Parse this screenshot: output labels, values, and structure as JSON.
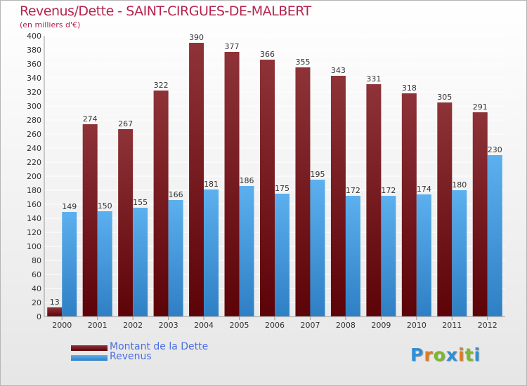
{
  "title": "Revenus/Dette - SAINT-CIRGUES-DE-MALBERT",
  "subtitle": "(en milliers d'€)",
  "colors": {
    "dette_top": "#8e3338",
    "dette_bottom": "#5c0308",
    "revenus_top": "#5cb0ee",
    "revenus_bottom": "#2e7fc4",
    "grid": "#ffffff",
    "axis_text": "#333333"
  },
  "chart_data": {
    "type": "bar",
    "title": "Revenus/Dette - SAINT-CIRGUES-DE-MALBERT",
    "subtitle": "(en milliers d'€)",
    "categories": [
      "2000",
      "2001",
      "2002",
      "2003",
      "2004",
      "2005",
      "2006",
      "2007",
      "2008",
      "2009",
      "2010",
      "2011",
      "2012"
    ],
    "series": [
      {
        "name": "Montant de la Dette",
        "values": [
          13,
          274,
          267,
          322,
          390,
          377,
          366,
          355,
          343,
          331,
          318,
          305,
          291
        ]
      },
      {
        "name": "Revenus",
        "values": [
          149,
          150,
          155,
          166,
          181,
          186,
          175,
          195,
          172,
          172,
          174,
          180,
          230
        ]
      }
    ],
    "ylim": [
      0,
      400
    ],
    "ytick_step": 20,
    "grid": true,
    "legend_position": "bottom-left"
  },
  "legend": [
    {
      "label": "Montant de la Dette"
    },
    {
      "label": "Revenus"
    }
  ],
  "logo": {
    "letters": [
      "P",
      "r",
      "o",
      "x",
      "i",
      "t",
      "i"
    ],
    "colors": [
      "#2d8fd6",
      "#e07b1f",
      "#7ab929",
      "#2d8fd6",
      "#e07b1f",
      "#7ab929",
      "#2d8fd6"
    ]
  }
}
